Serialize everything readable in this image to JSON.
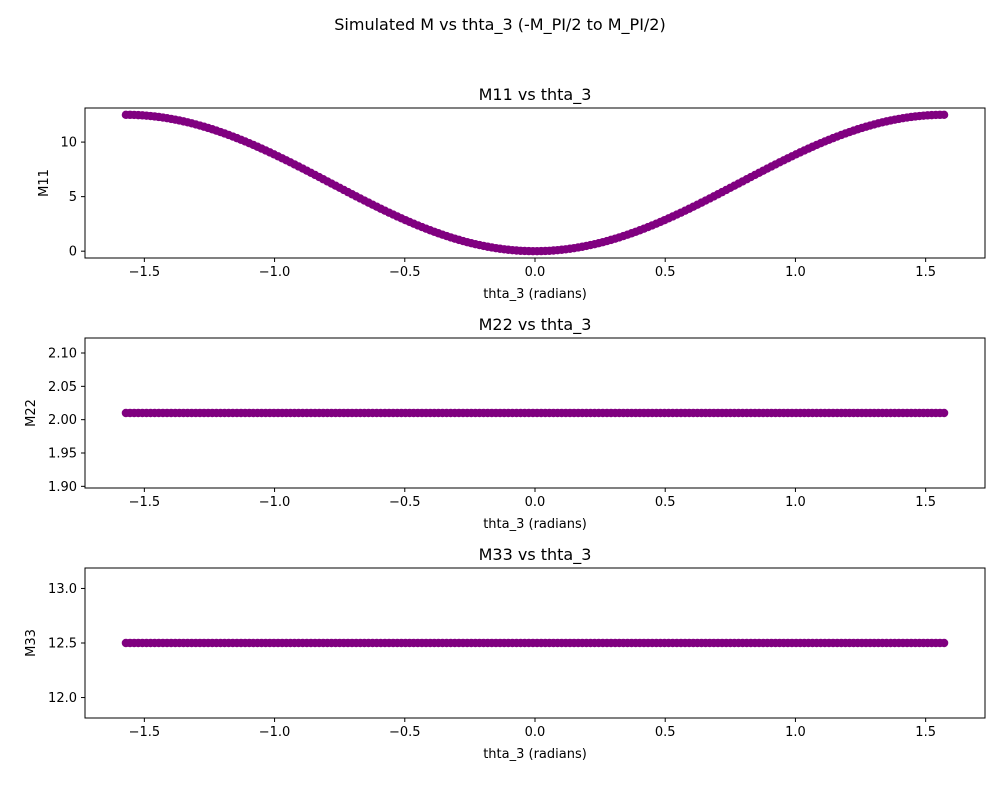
{
  "figure": {
    "suptitle": "Simulated M vs thta_3 (-M_PI/2 to M_PI/2)"
  },
  "chart_data": [
    {
      "type": "scatter",
      "title": "M11 vs thta_3",
      "xlabel": "thta_3 (radians)",
      "ylabel": "M11",
      "xlim": [
        -1.7279,
        1.7279
      ],
      "ylim": [
        -0.625,
        13.125
      ],
      "xticks": [
        -1.5,
        -1.0,
        -0.5,
        0.0,
        0.5,
        1.0,
        1.5
      ],
      "xtick_labels": [
        "−1.5",
        "−1.0",
        "−0.5",
        "0.0",
        "0.5",
        "1.0",
        "1.5"
      ],
      "yticks": [
        0,
        5,
        10
      ],
      "ytick_labels": [
        "0",
        "5",
        "10"
      ],
      "marker_color": "#800080",
      "grid": false,
      "series": [
        {
          "x_range": [
            -1.5708,
            1.5708
          ],
          "num_points": 200,
          "formula": "12.5 * sin(x)^2",
          "sample": {
            "x": [
              -1.5708,
              -1.0,
              -0.5,
              0.0,
              0.5,
              1.0,
              1.5708
            ],
            "y": [
              12.5,
              8.85,
              2.87,
              0.0,
              2.87,
              8.85,
              12.5
            ]
          }
        }
      ]
    },
    {
      "type": "scatter",
      "title": "M22 vs thta_3",
      "xlabel": "thta_3 (radians)",
      "ylabel": "M22",
      "xlim": [
        -1.7279,
        1.7279
      ],
      "ylim": [
        1.8975,
        2.1225
      ],
      "xticks": [
        -1.5,
        -1.0,
        -0.5,
        0.0,
        0.5,
        1.0,
        1.5
      ],
      "xtick_labels": [
        "−1.5",
        "−1.0",
        "−0.5",
        "0.0",
        "0.5",
        "1.0",
        "1.5"
      ],
      "yticks": [
        1.9,
        1.95,
        2.0,
        2.05,
        2.1
      ],
      "ytick_labels": [
        "1.90",
        "1.95",
        "2.00",
        "2.05",
        "2.10"
      ],
      "marker_color": "#800080",
      "grid": false,
      "series": [
        {
          "x_range": [
            -1.5708,
            1.5708
          ],
          "num_points": 200,
          "formula": "constant",
          "constant": 2.01
        }
      ]
    },
    {
      "type": "scatter",
      "title": "M33 vs thta_3",
      "xlabel": "thta_3 (radians)",
      "ylabel": "M33",
      "xlim": [
        -1.7279,
        1.7279
      ],
      "ylim": [
        11.8125,
        13.1875
      ],
      "xticks": [
        -1.5,
        -1.0,
        -0.5,
        0.0,
        0.5,
        1.0,
        1.5
      ],
      "xtick_labels": [
        "−1.5",
        "−1.0",
        "−0.5",
        "0.0",
        "0.5",
        "1.0",
        "1.5"
      ],
      "yticks": [
        12.0,
        12.5,
        13.0
      ],
      "ytick_labels": [
        "12.0",
        "12.5",
        "13.0"
      ],
      "marker_color": "#800080",
      "grid": false,
      "series": [
        {
          "x_range": [
            -1.5708,
            1.5708
          ],
          "num_points": 200,
          "formula": "constant",
          "constant": 12.5
        }
      ]
    }
  ]
}
